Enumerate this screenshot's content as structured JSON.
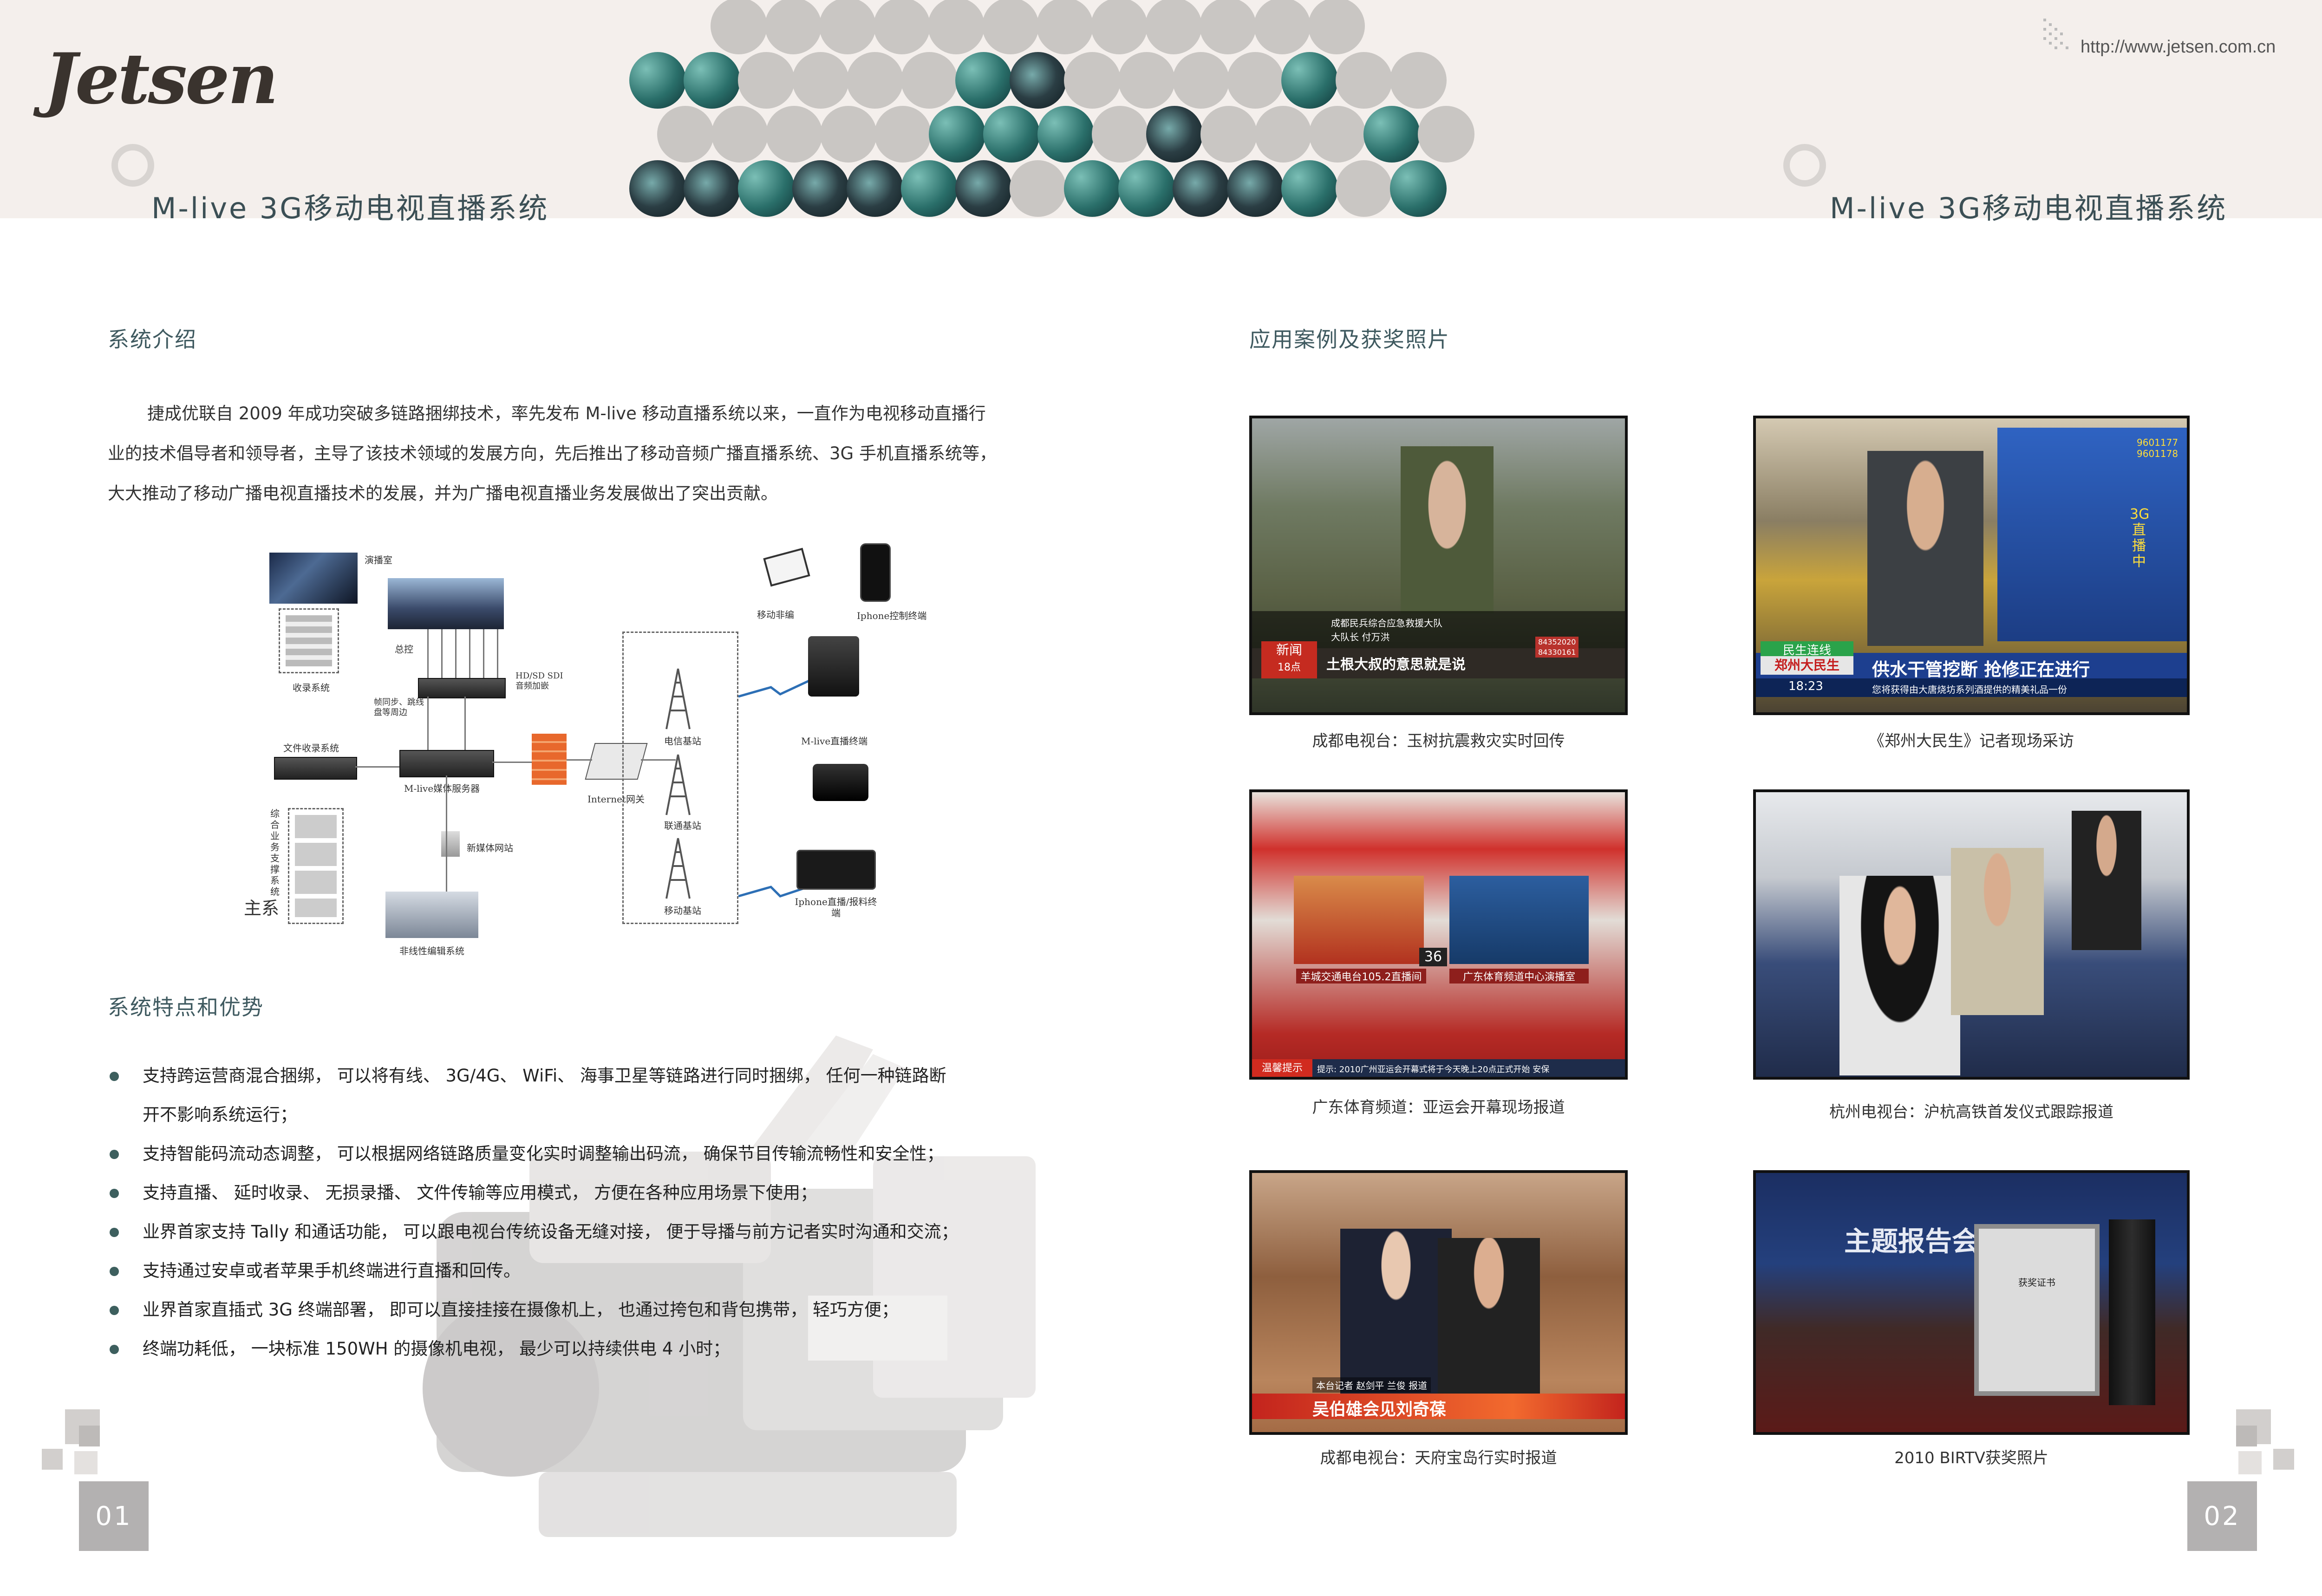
{
  "header": {
    "logo": "Jetsen",
    "url": "http://www.jetsen.com.cn",
    "title_left": "M-live 3G移动电视直播系统",
    "title_right": "M-live 3G移动电视直播系统"
  },
  "left": {
    "intro_heading": "系统介绍",
    "intro_lines": [
      "捷成优联自 2009 年成功突破多链路捆绑技术，率先发布 M-live 移动直播系统以来，一直作为电视移动直播行",
      "业的技术倡导者和领导者，主导了该技术领域的发展方向，先后推出了移动音频广播直播系统、3G 手机直播系统等，",
      "大大推动了移动广播电视直播技术的发展，并为广播电视直播业务发展做出了突出贡献。"
    ],
    "diagram": {
      "labels": {
        "studio": "演播室",
        "master_control": "总控",
        "recording": "收录系统",
        "sync": "帧同步、跳线盘等周边",
        "sdi": "HD/SD SDI 音频加嵌",
        "file_recv": "文件收录系统",
        "server": "M-live媒体服务器",
        "internet": "Internet网关",
        "newmedia": "新媒体网站",
        "support": "综合业务支撑系统",
        "support_main": "主系",
        "nonlinear": "非线性编辑系统",
        "telecom": "电信基站",
        "unicom": "联通基站",
        "mobile": "移动基站",
        "mobile_edit": "移动非编",
        "iphone_ctrl": "Iphone控制终端",
        "mlive_terminal": "M-live直播终端",
        "iphone_live": "Iphone直播/报料终端"
      }
    },
    "features_heading": "系统特点和优势",
    "features": [
      "支持跨运营商混合捆绑， 可以将有线、 3G/4G、 WiFi、 海事卫星等链路进行同时捆绑， 任何一种链路断",
      "开不影响系统运行；",
      "支持智能码流动态调整， 可以根据网络链路质量变化实时调整输出码流， 确保节目传输流畅性和安全性；",
      "支持直播、 延时收录、 无损录播、 文件传输等应用模式， 方便在各种应用场景下使用；",
      "业界首家支持 Tally 和通话功能， 可以跟电视台传统设备无缝对接， 便于导播与前方记者实时沟通和交流；",
      "支持通过安卓或者苹果手机终端进行直播和回传。",
      "业界首家直插式 3G 终端部署， 即可以直接挂接在摄像机上， 也通过挎包和背包携带， 轻巧方便；",
      "终端功耗低， 一块标准 150WH 的摄像机电视， 最少可以持续供电 4 小时；"
    ],
    "page_number": "01"
  },
  "right": {
    "cases_heading": "应用案例及获奖照片",
    "photos": [
      {
        "caption": "成都电视台：玉树抗震救灾实时回传",
        "overlay": [
          "成都民兵综合应急救援大队",
          "大队长 付万洪",
          "土根大叔的意思就是说",
          "84352020",
          "84330161",
          "新闻",
          "18点"
        ]
      },
      {
        "caption": "《郑州大民生》记者现场采访",
        "overlay": [
          "供水干管挖断 抢修正在进行",
          "郑州大民生",
          "18:23",
          "您将获得由大唐烧坊系列酒提供的精美礼品一份",
          "民生连线",
          "3G直播中",
          "9601177",
          "9601178"
        ]
      },
      {
        "caption": "广东体育频道：亚运会开幕现场报道",
        "overlay": [
          "羊城交通电台105.2直播间",
          "广东体育频道中心演播室",
          "温馨提示",
          "提示: 2010广州亚运会开幕式将于今天晚上20点正式开始 安保",
          "36"
        ]
      },
      {
        "caption": "杭州电视台：沪杭高铁首发仪式跟踪报道",
        "overlay": []
      },
      {
        "caption": "成都电视台：天府宝岛行实时报道",
        "overlay": [
          "本台记者 赵剑平 兰俊 报道",
          "吴伯雄会见刘奇葆"
        ]
      },
      {
        "caption": "2010 BIRTV获奖照片",
        "overlay": [
          "主题报告会",
          "获奖证书"
        ]
      }
    ],
    "page_number": "02"
  }
}
